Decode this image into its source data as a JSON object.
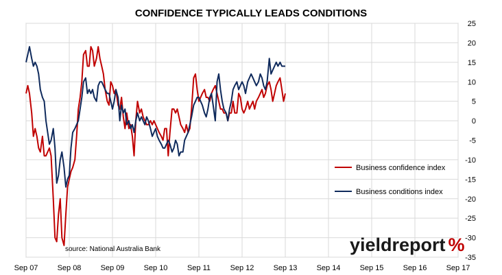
{
  "chart_data": {
    "type": "line",
    "title": "CONFIDENCE TYPICALLY LEADS CONDITIONS",
    "xlabel": "",
    "ylabel": "",
    "x_ticks": [
      "Sep 07",
      "Sep 08",
      "Sep 09",
      "Sep 10",
      "Sep 11",
      "Sep 12",
      "Sep 13",
      "Sep 14",
      "Sep 15",
      "Sep 16",
      "Sep 17"
    ],
    "x_range": [
      "Sep 07",
      "Sep 17"
    ],
    "y_axis_position": "right",
    "ylim": [
      -35,
      25
    ],
    "y_ticks": [
      25,
      20,
      15,
      10,
      5,
      0,
      -5,
      -10,
      -15,
      -20,
      -25,
      -30,
      -35
    ],
    "grid": {
      "horizontal": true,
      "vertical": true
    },
    "legend_position": "center-right",
    "annotation": "source: National Australia Bank",
    "series": [
      {
        "name": "Business confidence index",
        "color": "#c00000",
        "values": [
          [
            0,
            7
          ],
          [
            0.04,
            9
          ],
          [
            0.08,
            7
          ],
          [
            0.13,
            2
          ],
          [
            0.17,
            -4
          ],
          [
            0.21,
            -2
          ],
          [
            0.25,
            -4
          ],
          [
            0.29,
            -7
          ],
          [
            0.33,
            -8
          ],
          [
            0.38,
            -4
          ],
          [
            0.42,
            -9
          ],
          [
            0.46,
            -9
          ],
          [
            0.5,
            -8
          ],
          [
            0.54,
            -7
          ],
          [
            0.58,
            -9
          ],
          [
            0.63,
            -20
          ],
          [
            0.67,
            -30
          ],
          [
            0.71,
            -31
          ],
          [
            0.75,
            -24
          ],
          [
            0.79,
            -20
          ],
          [
            0.83,
            -30
          ],
          [
            0.88,
            -32
          ],
          [
            0.92,
            -24
          ],
          [
            0.96,
            -17
          ],
          [
            1,
            -15
          ],
          [
            1.04,
            -13
          ],
          [
            1.08,
            -12
          ],
          [
            1.13,
            -10
          ],
          [
            1.17,
            -4
          ],
          [
            1.21,
            3
          ],
          [
            1.25,
            6
          ],
          [
            1.29,
            10
          ],
          [
            1.33,
            17
          ],
          [
            1.38,
            18
          ],
          [
            1.42,
            14
          ],
          [
            1.46,
            14
          ],
          [
            1.5,
            19
          ],
          [
            1.54,
            18
          ],
          [
            1.58,
            14
          ],
          [
            1.63,
            16
          ],
          [
            1.67,
            19
          ],
          [
            1.71,
            16
          ],
          [
            1.75,
            14
          ],
          [
            1.79,
            12
          ],
          [
            1.83,
            8
          ],
          [
            1.88,
            5
          ],
          [
            1.92,
            4
          ],
          [
            1.96,
            10
          ],
          [
            2,
            9
          ],
          [
            2.04,
            7
          ],
          [
            2.08,
            8
          ],
          [
            2.13,
            4
          ],
          [
            2.17,
            3
          ],
          [
            2.21,
            6
          ],
          [
            2.25,
            1
          ],
          [
            2.29,
            -2
          ],
          [
            2.33,
            2
          ],
          [
            2.38,
            -2
          ],
          [
            2.42,
            -1
          ],
          [
            2.46,
            -4
          ],
          [
            2.5,
            -9
          ],
          [
            2.54,
            0
          ],
          [
            2.58,
            5
          ],
          [
            2.63,
            2
          ],
          [
            2.67,
            3
          ],
          [
            2.71,
            1
          ],
          [
            2.75,
            0
          ],
          [
            2.79,
            -1
          ],
          [
            2.83,
            -1
          ],
          [
            2.88,
            0
          ],
          [
            2.92,
            -1
          ],
          [
            2.96,
            0
          ],
          [
            3,
            -1
          ],
          [
            3.04,
            -2
          ],
          [
            3.08,
            -3
          ],
          [
            3.13,
            -4
          ],
          [
            3.17,
            -5
          ],
          [
            3.21,
            -2
          ],
          [
            3.25,
            -2
          ],
          [
            3.29,
            -9
          ],
          [
            3.33,
            -3
          ],
          [
            3.38,
            3
          ],
          [
            3.42,
            3
          ],
          [
            3.46,
            2
          ],
          [
            3.5,
            3
          ],
          [
            3.54,
            1
          ],
          [
            3.58,
            -1
          ],
          [
            3.63,
            -2
          ],
          [
            3.67,
            -3
          ],
          [
            3.71,
            -1
          ],
          [
            3.75,
            -3
          ],
          [
            3.79,
            -2
          ],
          [
            3.83,
            3
          ],
          [
            3.88,
            11
          ],
          [
            3.92,
            12
          ],
          [
            3.96,
            8
          ],
          [
            4,
            5
          ],
          [
            4.04,
            6
          ],
          [
            4.08,
            7
          ],
          [
            4.13,
            8
          ],
          [
            4.17,
            6
          ],
          [
            4.21,
            6
          ],
          [
            4.25,
            5
          ],
          [
            4.29,
            7
          ],
          [
            4.33,
            8
          ],
          [
            4.38,
            9
          ],
          [
            4.42,
            7
          ],
          [
            4.46,
            5
          ],
          [
            4.5,
            3
          ],
          [
            4.54,
            3
          ],
          [
            4.58,
            2
          ],
          [
            4.63,
            2
          ],
          [
            4.67,
            0
          ],
          [
            4.71,
            2
          ],
          [
            4.75,
            2
          ],
          [
            4.79,
            5
          ],
          [
            4.83,
            2
          ],
          [
            4.88,
            2
          ],
          [
            4.92,
            7
          ],
          [
            4.96,
            6
          ],
          [
            5,
            3
          ],
          [
            5.04,
            2
          ],
          [
            5.08,
            3
          ],
          [
            5.13,
            5
          ],
          [
            5.17,
            3
          ],
          [
            5.21,
            4
          ],
          [
            5.25,
            5
          ],
          [
            5.29,
            3
          ],
          [
            5.33,
            5
          ],
          [
            5.38,
            6
          ],
          [
            5.42,
            7
          ],
          [
            5.46,
            8
          ],
          [
            5.5,
            6
          ],
          [
            5.54,
            7
          ],
          [
            5.58,
            9
          ],
          [
            5.63,
            10
          ],
          [
            5.67,
            8
          ],
          [
            5.71,
            5
          ],
          [
            5.75,
            7
          ],
          [
            5.79,
            9
          ],
          [
            5.83,
            10
          ],
          [
            5.88,
            11
          ],
          [
            5.92,
            8
          ],
          [
            5.96,
            5
          ],
          [
            6,
            7
          ]
        ]
      },
      {
        "name": "Business conditions index",
        "color": "#0f2a5c",
        "values": [
          [
            0,
            15
          ],
          [
            0.04,
            17
          ],
          [
            0.08,
            19
          ],
          [
            0.13,
            16
          ],
          [
            0.17,
            14
          ],
          [
            0.21,
            15
          ],
          [
            0.25,
            14
          ],
          [
            0.29,
            12
          ],
          [
            0.33,
            8
          ],
          [
            0.38,
            6
          ],
          [
            0.42,
            5
          ],
          [
            0.46,
            0
          ],
          [
            0.5,
            -3
          ],
          [
            0.54,
            -6
          ],
          [
            0.58,
            -5
          ],
          [
            0.63,
            -2
          ],
          [
            0.67,
            -7
          ],
          [
            0.71,
            -16
          ],
          [
            0.75,
            -14
          ],
          [
            0.79,
            -10
          ],
          [
            0.83,
            -8
          ],
          [
            0.88,
            -12
          ],
          [
            0.92,
            -17
          ],
          [
            0.96,
            -15
          ],
          [
            1,
            -14
          ],
          [
            1.04,
            -7
          ],
          [
            1.08,
            -3
          ],
          [
            1.13,
            -2
          ],
          [
            1.17,
            -1
          ],
          [
            1.21,
            0
          ],
          [
            1.25,
            3
          ],
          [
            1.29,
            6
          ],
          [
            1.33,
            10
          ],
          [
            1.38,
            11
          ],
          [
            1.42,
            7
          ],
          [
            1.46,
            8
          ],
          [
            1.5,
            7
          ],
          [
            1.54,
            8
          ],
          [
            1.58,
            6
          ],
          [
            1.63,
            5
          ],
          [
            1.67,
            9
          ],
          [
            1.71,
            10
          ],
          [
            1.75,
            10
          ],
          [
            1.79,
            9
          ],
          [
            1.83,
            8
          ],
          [
            1.88,
            7
          ],
          [
            1.92,
            7
          ],
          [
            1.96,
            5
          ],
          [
            2,
            3
          ],
          [
            2.04,
            5
          ],
          [
            2.08,
            8
          ],
          [
            2.13,
            6
          ],
          [
            2.17,
            0
          ],
          [
            2.21,
            4
          ],
          [
            2.25,
            2
          ],
          [
            2.29,
            3
          ],
          [
            2.33,
            -1
          ],
          [
            2.38,
            0
          ],
          [
            2.42,
            -2
          ],
          [
            2.46,
            -1
          ],
          [
            2.5,
            -3
          ],
          [
            2.54,
            0
          ],
          [
            2.58,
            2
          ],
          [
            2.63,
            0
          ],
          [
            2.67,
            1
          ],
          [
            2.71,
            0
          ],
          [
            2.75,
            -1
          ],
          [
            2.79,
            1
          ],
          [
            2.83,
            0
          ],
          [
            2.88,
            -2
          ],
          [
            2.92,
            -4
          ],
          [
            2.96,
            -3
          ],
          [
            3,
            -2
          ],
          [
            3.04,
            -4
          ],
          [
            3.08,
            -5
          ],
          [
            3.13,
            -6
          ],
          [
            3.17,
            -7
          ],
          [
            3.21,
            -7
          ],
          [
            3.25,
            -6
          ],
          [
            3.29,
            -5
          ],
          [
            3.33,
            -6
          ],
          [
            3.38,
            -8
          ],
          [
            3.42,
            -7
          ],
          [
            3.46,
            -5
          ],
          [
            3.5,
            -6
          ],
          [
            3.54,
            -9
          ],
          [
            3.58,
            -8
          ],
          [
            3.63,
            -8
          ],
          [
            3.67,
            -5
          ],
          [
            3.71,
            -4
          ],
          [
            3.75,
            -3
          ],
          [
            3.79,
            -1
          ],
          [
            3.83,
            1
          ],
          [
            3.88,
            4
          ],
          [
            3.92,
            5
          ],
          [
            3.96,
            6
          ],
          [
            4,
            6
          ],
          [
            4.04,
            5
          ],
          [
            4.08,
            4
          ],
          [
            4.13,
            2
          ],
          [
            4.17,
            1
          ],
          [
            4.21,
            3
          ],
          [
            4.25,
            6
          ],
          [
            4.29,
            7
          ],
          [
            4.33,
            4
          ],
          [
            4.38,
            0
          ],
          [
            4.42,
            10
          ],
          [
            4.46,
            12
          ],
          [
            4.5,
            8
          ],
          [
            4.54,
            5
          ],
          [
            4.58,
            3
          ],
          [
            4.63,
            2
          ],
          [
            4.67,
            0
          ],
          [
            4.71,
            3
          ],
          [
            4.75,
            5
          ],
          [
            4.79,
            8
          ],
          [
            4.83,
            9
          ],
          [
            4.88,
            10
          ],
          [
            4.92,
            8
          ],
          [
            4.96,
            9
          ],
          [
            5,
            10
          ],
          [
            5.04,
            9
          ],
          [
            5.08,
            7
          ],
          [
            5.13,
            10
          ],
          [
            5.17,
            11
          ],
          [
            5.21,
            12
          ],
          [
            5.25,
            11
          ],
          [
            5.29,
            10
          ],
          [
            5.33,
            9
          ],
          [
            5.38,
            10
          ],
          [
            5.42,
            12
          ],
          [
            5.46,
            11
          ],
          [
            5.5,
            9
          ],
          [
            5.54,
            8
          ],
          [
            5.58,
            10
          ],
          [
            5.63,
            16
          ],
          [
            5.67,
            12
          ],
          [
            5.71,
            13
          ],
          [
            5.75,
            14
          ],
          [
            5.79,
            15
          ],
          [
            5.83,
            14
          ],
          [
            5.88,
            15
          ],
          [
            5.92,
            14
          ],
          [
            5.96,
            14
          ],
          [
            6,
            14
          ]
        ]
      }
    ]
  },
  "logo": {
    "text": "yieldreport",
    "symbol": "%",
    "text_color": "#1a1a1a",
    "symbol_color": "#c00000"
  }
}
